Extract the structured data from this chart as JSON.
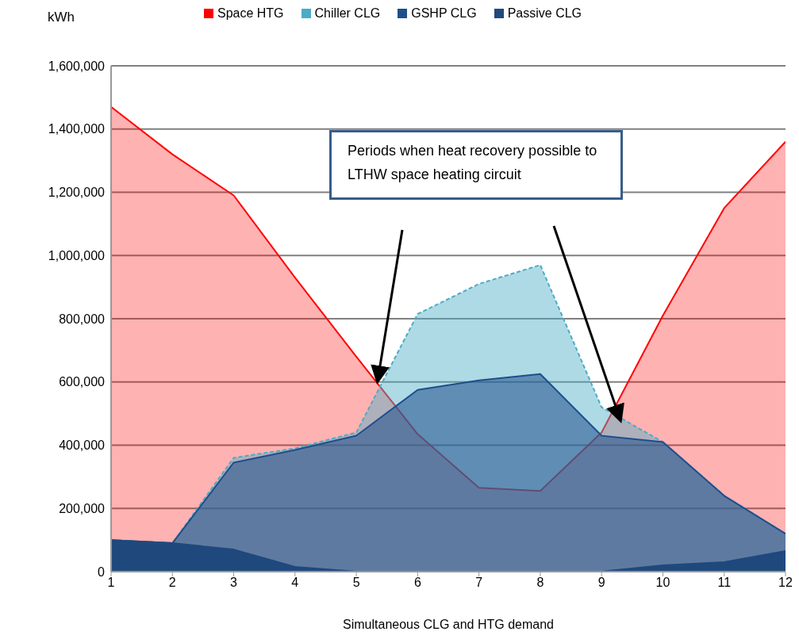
{
  "chart_data": {
    "type": "area",
    "xlabel": "Simultaneous CLG and HTG demand",
    "ylabel": "kWh",
    "x": [
      1,
      2,
      3,
      4,
      5,
      6,
      7,
      8,
      9,
      10,
      11,
      12
    ],
    "series": [
      {
        "name": "Space HTG",
        "color": "#ff0000",
        "values": [
          1470000,
          1320000,
          1190000,
          930000,
          680000,
          435000,
          265000,
          255000,
          440000,
          810000,
          1150000,
          1360000
        ]
      },
      {
        "name": "Chiller CLG",
        "color": "#4bacc6",
        "line_style": "dashed",
        "values": [
          100000,
          90000,
          360000,
          390000,
          440000,
          815000,
          910000,
          970000,
          520000,
          410000,
          240000,
          120000
        ]
      },
      {
        "name": "GSHP CLG",
        "color": "#1f4e8c",
        "values": [
          100000,
          90000,
          345000,
          385000,
          430000,
          575000,
          605000,
          625000,
          430000,
          410000,
          240000,
          120000
        ]
      },
      {
        "name": "Passive CLG",
        "color": "#1f497d",
        "values": [
          100000,
          90000,
          70000,
          15000,
          0,
          0,
          0,
          0,
          0,
          20000,
          30000,
          65000
        ]
      }
    ],
    "xlim": [
      1,
      12
    ],
    "xticks": [
      1,
      2,
      3,
      4,
      5,
      6,
      7,
      8,
      9,
      10,
      11,
      12
    ],
    "ylim": [
      0,
      1600000
    ],
    "yticks": [
      0,
      {
        "value": 200000,
        "label": "200,000"
      },
      {
        "value": 400000,
        "label": "400,000"
      },
      {
        "value": 600000,
        "label": "600,000"
      },
      {
        "value": 800000,
        "label": "800,000"
      },
      {
        "value": 1000000,
        "label": "1,000,000"
      },
      {
        "value": 1200000,
        "label": "1,200,000"
      },
      {
        "value": 1400000,
        "label": "1,400,000"
      },
      {
        "value": 1600000,
        "label": "1,600,000"
      }
    ],
    "grid": "y",
    "legend": "top",
    "annotations": [
      "Periods when heat recovery possible to LTHW space heating circuit"
    ]
  }
}
